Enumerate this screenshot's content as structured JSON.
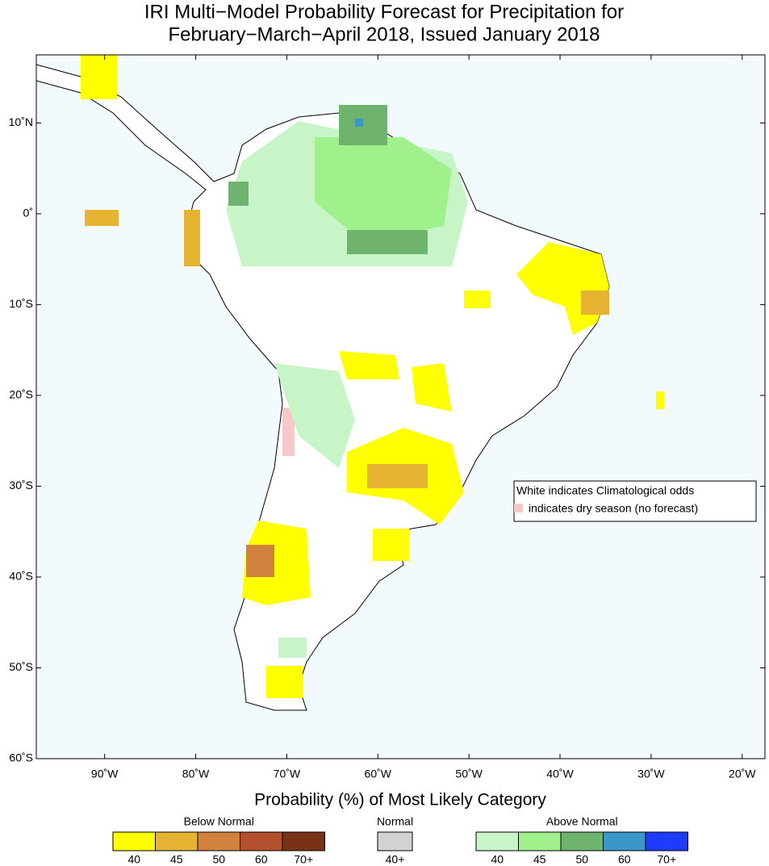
{
  "map": {
    "title": [
      "IRI Multi−Model Probability Forecast for Precipitation for",
      "February−March−April 2018, Issued January 2018"
    ],
    "xlim": [
      -97.5,
      -17.5
    ],
    "ylim": [
      -60,
      17.5
    ],
    "xticks": [
      {
        "value": -90,
        "label": "90˚W"
      },
      {
        "value": -80,
        "label": "80˚W"
      },
      {
        "value": -70,
        "label": "70˚W"
      },
      {
        "value": -60,
        "label": "60˚W"
      },
      {
        "value": -50,
        "label": "50˚W"
      },
      {
        "value": -40,
        "label": "40˚W"
      },
      {
        "value": -30,
        "label": "30˚W"
      },
      {
        "value": -20,
        "label": "20˚W"
      }
    ],
    "yticks": [
      {
        "value": 10,
        "label": "10˚N"
      },
      {
        "value": 0,
        "label": "0˚"
      },
      {
        "value": -10,
        "label": "10˚S"
      },
      {
        "value": -20,
        "label": "20˚S"
      },
      {
        "value": -30,
        "label": "30˚S"
      },
      {
        "value": -40,
        "label": "40˚S"
      },
      {
        "value": -50,
        "label": "50˚S"
      },
      {
        "value": -60,
        "label": "60˚S"
      }
    ],
    "note": [
      "White indicates Climatological odds",
      "indicates dry season (no forecast)"
    ]
  },
  "legend": {
    "title": "Probability (%) of Most Likely Category",
    "groups": [
      {
        "name": "Below Normal",
        "colors": [
          "#ffff00",
          "#e6b432",
          "#d2823c",
          "#b4502d",
          "#783214"
        ],
        "labels": [
          40,
          45,
          50,
          60,
          {
            "value": 70,
            "label": "70+"
          }
        ]
      },
      {
        "name": "Normal",
        "colors": [
          "#d2d2d2"
        ],
        "labels": [
          {
            "value": 40,
            "label": "40+"
          }
        ]
      },
      {
        "name": "Above Normal",
        "colors": [
          "#c8f5c8",
          "#a0f08c",
          "#6eb46e",
          "#3c96c8",
          "#1e3cff"
        ],
        "labels": [
          40,
          45,
          50,
          60,
          {
            "value": 70,
            "label": "70+"
          }
        ]
      }
    ]
  }
}
